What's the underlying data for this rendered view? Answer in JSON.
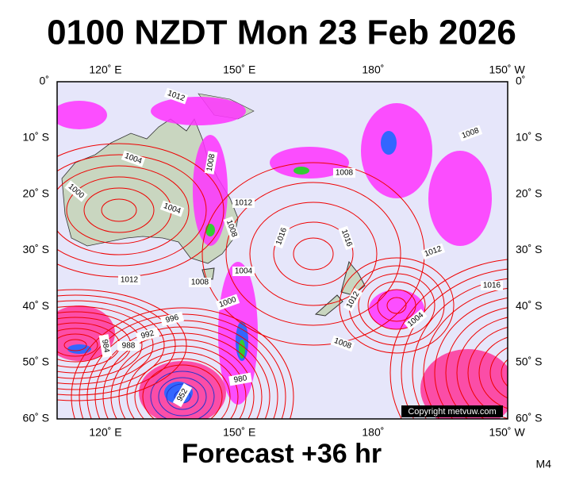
{
  "header": {
    "title": "0100 NZDT Mon 23 Feb 2026"
  },
  "map": {
    "lon_labels": [
      "120˚ E",
      "150˚ E",
      "180˚",
      "150˚ W"
    ],
    "lat_labels": [
      "0˚",
      "10˚ S",
      "20˚ S",
      "30˚ S",
      "40˚ S",
      "50˚ S",
      "60˚ S"
    ],
    "isobar_labels": [
      "1012",
      "1004",
      "1008",
      "1000",
      "1004",
      "1012",
      "1008",
      "1016",
      "1016",
      "1008",
      "1008",
      "1012",
      "1012",
      "1008",
      "1004",
      "1000",
      "1012",
      "996",
      "992",
      "988",
      "984",
      "1004",
      "1008",
      "1016",
      "980",
      "952"
    ],
    "copyright": "Copyright metvuw.com"
  },
  "footer": {
    "forecast": "Forecast +36 hr",
    "model": "M4"
  }
}
